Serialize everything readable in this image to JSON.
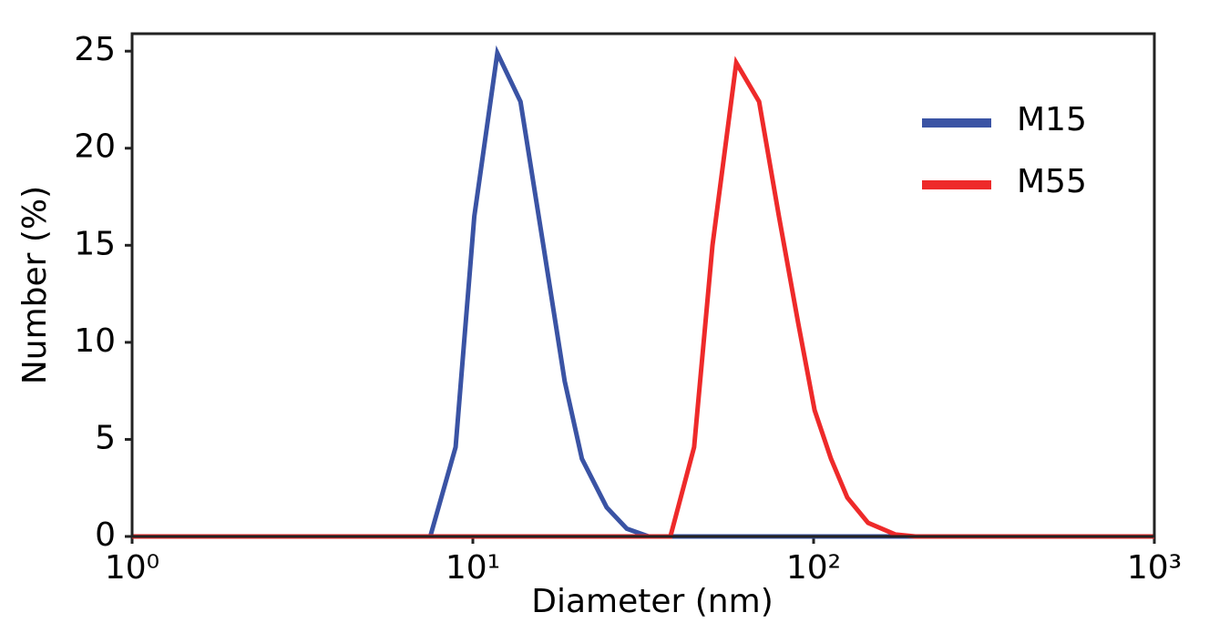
{
  "chart_data": {
    "type": "line",
    "xlabel": "Diameter (nm)",
    "ylabel": "Number (%)",
    "xscale": "log",
    "xlim": [
      1,
      1000
    ],
    "ylim": [
      0,
      25.9
    ],
    "xticks": [
      {
        "value": 1,
        "label": "10⁰"
      },
      {
        "value": 10,
        "label": "10¹"
      },
      {
        "value": 100,
        "label": "10²"
      },
      {
        "value": 1000,
        "label": "10³"
      }
    ],
    "yticks": [
      0,
      5,
      10,
      15,
      20,
      25
    ],
    "legend": "upper right",
    "series": [
      {
        "name": "M15",
        "color": "#3a53a4",
        "x": [
          1,
          7.5,
          8.9,
          10.1,
          11.8,
          13.8,
          16.1,
          18.6,
          20.9,
          24.7,
          28.3,
          32.8,
          1000
        ],
        "values": [
          0,
          0,
          4.6,
          16.5,
          24.9,
          22.4,
          15,
          8,
          4,
          1.5,
          0.4,
          0,
          0
        ]
      },
      {
        "name": "M55",
        "color": "#ee2a2a",
        "x": [
          1,
          38,
          44.6,
          50.5,
          59.3,
          69.2,
          79.1,
          90.1,
          100.7,
          112.5,
          125.6,
          144.5,
          174,
          199,
          1000
        ],
        "values": [
          0,
          0,
          4.6,
          15,
          24.4,
          22.4,
          16.5,
          11,
          6.5,
          4,
          2,
          0.7,
          0.1,
          0,
          0
        ]
      }
    ]
  }
}
